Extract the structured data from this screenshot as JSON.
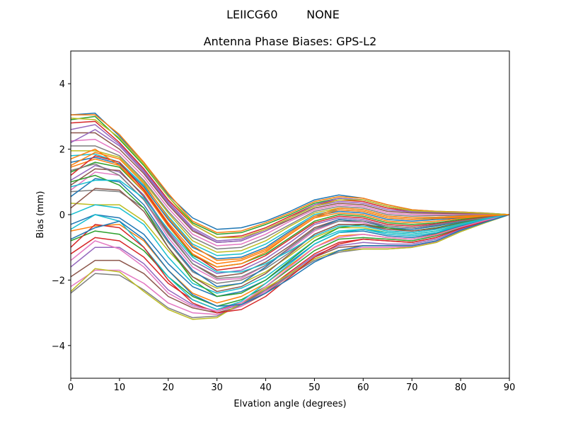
{
  "figure": {
    "suptitle": "LEIICG60        NONE"
  },
  "chart_data": {
    "type": "line",
    "title": "Antenna Phase Biases: GPS-L2",
    "xlabel": "Elvation angle (degrees)",
    "ylabel": "Bias (mm)",
    "xlim": [
      0,
      90
    ],
    "ylim": [
      -5,
      5
    ],
    "xticks": [
      0,
      10,
      20,
      30,
      40,
      50,
      60,
      70,
      80,
      90
    ],
    "xtick_labels": [
      "0",
      "10",
      "20",
      "30",
      "40",
      "50",
      "60",
      "70",
      "80",
      "90"
    ],
    "yticks": [
      -4,
      -2,
      0,
      2,
      4
    ],
    "ytick_labels": [
      "−4",
      "−2",
      "0",
      "2",
      "4"
    ],
    "grid": false,
    "legend": "none",
    "x": [
      0,
      5,
      10,
      15,
      20,
      25,
      30,
      35,
      40,
      45,
      50,
      55,
      60,
      65,
      70,
      75,
      80,
      85,
      90
    ],
    "colors": [
      "#1f77b4",
      "#ff7f0e",
      "#2ca02c",
      "#d62728",
      "#9467bd",
      "#8c564b",
      "#e377c2",
      "#7f7f7f",
      "#bcbd22",
      "#17becf"
    ],
    "series": [
      {
        "values": [
          3.05,
          3.1,
          2.4,
          1.6,
          0.6,
          -0.1,
          -0.45,
          -0.4,
          -0.2,
          0.1,
          0.45,
          0.6,
          0.5,
          0.3,
          0.15,
          0.1,
          0.08,
          0.05,
          0.0
        ]
      },
      {
        "values": [
          3.05,
          3.05,
          2.45,
          1.6,
          0.65,
          -0.2,
          -0.55,
          -0.5,
          -0.25,
          0.05,
          0.4,
          0.55,
          0.5,
          0.3,
          0.15,
          0.1,
          0.08,
          0.05,
          0.0
        ]
      },
      {
        "values": [
          2.9,
          3.0,
          2.3,
          1.5,
          0.55,
          -0.25,
          -0.6,
          -0.55,
          -0.3,
          0.0,
          0.35,
          0.5,
          0.45,
          0.25,
          0.12,
          0.08,
          0.06,
          0.04,
          0.0
        ]
      },
      {
        "values": [
          2.8,
          2.85,
          2.2,
          1.4,
          0.45,
          -0.3,
          -0.7,
          -0.65,
          -0.4,
          -0.05,
          0.3,
          0.45,
          0.4,
          0.2,
          0.1,
          0.07,
          0.05,
          0.03,
          0.0
        ]
      },
      {
        "values": [
          2.6,
          2.75,
          2.15,
          1.35,
          0.4,
          -0.4,
          -0.8,
          -0.75,
          -0.45,
          -0.1,
          0.25,
          0.4,
          0.35,
          0.15,
          0.08,
          0.06,
          0.05,
          0.03,
          0.0
        ]
      },
      {
        "values": [
          2.5,
          2.5,
          2.0,
          1.25,
          0.3,
          -0.5,
          -0.85,
          -0.8,
          -0.5,
          -0.15,
          0.2,
          0.35,
          0.3,
          0.1,
          0.05,
          0.04,
          0.03,
          0.02,
          0.0
        ]
      },
      {
        "values": [
          2.25,
          2.3,
          1.9,
          1.15,
          0.2,
          -0.6,
          -0.95,
          -0.9,
          -0.6,
          -0.2,
          0.15,
          0.3,
          0.25,
          0.05,
          0.0,
          0.0,
          0.0,
          0.0,
          0.0
        ]
      },
      {
        "values": [
          2.1,
          2.1,
          1.8,
          1.05,
          0.1,
          -0.7,
          -1.05,
          -1.0,
          -0.7,
          -0.3,
          0.1,
          0.25,
          0.2,
          0.0,
          -0.05,
          -0.03,
          -0.02,
          -0.01,
          0.0
        ]
      },
      {
        "values": [
          1.95,
          1.95,
          1.75,
          1.0,
          0.05,
          -0.8,
          -1.15,
          -1.1,
          -0.8,
          -0.35,
          0.05,
          0.2,
          0.15,
          -0.05,
          -0.1,
          -0.08,
          -0.05,
          -0.02,
          0.0
        ]
      },
      {
        "values": [
          1.8,
          1.85,
          1.6,
          0.9,
          -0.05,
          -0.9,
          -1.25,
          -1.2,
          -0.9,
          -0.45,
          0.0,
          0.15,
          0.1,
          -0.1,
          -0.15,
          -0.1,
          -0.07,
          -0.03,
          0.0
        ]
      },
      {
        "values": [
          1.6,
          1.75,
          1.55,
          0.85,
          -0.15,
          -1.0,
          -1.35,
          -1.3,
          -1.0,
          -0.5,
          -0.05,
          0.1,
          0.05,
          -0.15,
          -0.2,
          -0.15,
          -0.1,
          -0.05,
          0.0
        ]
      },
      {
        "values": [
          1.45,
          1.7,
          1.5,
          0.8,
          -0.25,
          -1.1,
          -1.5,
          -1.4,
          -1.1,
          -0.6,
          -0.1,
          0.05,
          0.0,
          -0.2,
          -0.25,
          -0.2,
          -0.12,
          -0.06,
          0.0
        ]
      },
      {
        "values": [
          1.3,
          1.6,
          1.45,
          0.7,
          -0.35,
          -1.25,
          -1.6,
          -1.5,
          -1.2,
          -0.7,
          -0.2,
          0.0,
          -0.05,
          -0.25,
          -0.3,
          -0.25,
          -0.15,
          -0.07,
          0.0
        ]
      },
      {
        "values": [
          1.2,
          1.8,
          1.6,
          0.75,
          -0.3,
          -1.2,
          -1.7,
          -1.6,
          -1.25,
          -0.75,
          -0.25,
          -0.05,
          -0.1,
          -0.3,
          -0.35,
          -0.28,
          -0.18,
          -0.08,
          0.0
        ]
      },
      {
        "values": [
          1.05,
          1.5,
          1.3,
          0.6,
          -0.5,
          -1.4,
          -1.8,
          -1.7,
          -1.35,
          -0.85,
          -0.3,
          -0.1,
          -0.15,
          -0.35,
          -0.4,
          -0.3,
          -0.2,
          -0.1,
          0.0
        ]
      },
      {
        "values": [
          0.9,
          1.4,
          1.35,
          0.55,
          -0.55,
          -1.5,
          -1.9,
          -1.8,
          -1.45,
          -0.95,
          -0.4,
          -0.15,
          -0.2,
          -0.4,
          -0.45,
          -0.35,
          -0.22,
          -0.1,
          0.0
        ]
      },
      {
        "values": [
          0.75,
          1.3,
          1.2,
          0.45,
          -0.7,
          -1.6,
          -2.0,
          -1.95,
          -1.55,
          -1.05,
          -0.5,
          -0.2,
          -0.25,
          -0.45,
          -0.5,
          -0.4,
          -0.25,
          -0.12,
          0.0
        ]
      },
      {
        "values": [
          0.7,
          0.75,
          0.7,
          0.2,
          -0.85,
          -1.75,
          -2.1,
          -2.0,
          -1.65,
          -1.15,
          -0.6,
          -0.3,
          -0.3,
          -0.5,
          -0.55,
          -0.45,
          -0.28,
          -0.13,
          0.0
        ]
      },
      {
        "values": [
          0.35,
          0.3,
          0.3,
          -0.2,
          -1.1,
          -1.9,
          -2.25,
          -2.1,
          -1.75,
          -1.25,
          -0.7,
          -0.4,
          -0.4,
          -0.55,
          -0.6,
          -0.5,
          -0.3,
          -0.15,
          0.0
        ]
      },
      {
        "values": [
          0.0,
          0.3,
          0.2,
          -0.3,
          -1.3,
          -2.1,
          -2.4,
          -2.25,
          -1.9,
          -1.35,
          -0.8,
          -0.5,
          -0.45,
          -0.6,
          -0.65,
          -0.55,
          -0.32,
          -0.15,
          0.0
        ]
      },
      {
        "values": [
          -0.3,
          0.0,
          -0.1,
          -0.6,
          -1.5,
          -2.2,
          -2.5,
          -2.35,
          -2.0,
          -1.45,
          -0.9,
          -0.55,
          -0.5,
          -0.65,
          -0.7,
          -0.58,
          -0.35,
          -0.17,
          0.0
        ]
      },
      {
        "values": [
          -0.5,
          -0.35,
          -0.3,
          -0.8,
          -1.7,
          -2.4,
          -2.7,
          -2.5,
          -2.1,
          -1.55,
          -1.0,
          -0.65,
          -0.6,
          -0.7,
          -0.75,
          -0.6,
          -0.38,
          -0.18,
          0.0
        ]
      },
      {
        "values": [
          -0.8,
          -0.5,
          -0.6,
          -1.1,
          -1.9,
          -2.5,
          -2.8,
          -2.6,
          -2.2,
          -1.65,
          -1.1,
          -0.75,
          -0.7,
          -0.75,
          -0.8,
          -0.65,
          -0.4,
          -0.2,
          0.0
        ]
      },
      {
        "values": [
          -1.2,
          -0.7,
          -0.8,
          -1.3,
          -2.1,
          -2.6,
          -2.9,
          -2.7,
          -2.3,
          -1.75,
          -1.2,
          -0.85,
          -0.75,
          -0.8,
          -0.85,
          -0.7,
          -0.42,
          -0.2,
          0.0
        ]
      },
      {
        "values": [
          -1.6,
          -1.0,
          -1.0,
          -1.5,
          -2.3,
          -2.75,
          -2.95,
          -2.75,
          -2.35,
          -1.8,
          -1.25,
          -0.95,
          -0.85,
          -0.9,
          -0.9,
          -0.75,
          -0.45,
          -0.22,
          0.0
        ]
      },
      {
        "values": [
          -1.9,
          -1.4,
          -1.4,
          -1.8,
          -2.5,
          -2.85,
          -3.0,
          -2.8,
          -2.4,
          -1.85,
          -1.3,
          -1.0,
          -0.95,
          -0.95,
          -0.95,
          -0.8,
          -0.48,
          -0.23,
          0.0
        ]
      },
      {
        "values": [
          -2.2,
          -1.7,
          -1.7,
          -2.1,
          -2.7,
          -3.0,
          -3.05,
          -2.8,
          -2.35,
          -1.85,
          -1.35,
          -1.1,
          -1.0,
          -1.0,
          -0.98,
          -0.82,
          -0.5,
          -0.24,
          0.0
        ]
      },
      {
        "values": [
          -2.4,
          -1.8,
          -1.85,
          -2.3,
          -2.85,
          -3.15,
          -3.1,
          -2.75,
          -2.3,
          -1.85,
          -1.4,
          -1.15,
          -1.05,
          -1.05,
          -1.0,
          -0.85,
          -0.52,
          -0.25,
          0.0
        ]
      },
      {
        "values": [
          -2.35,
          -1.65,
          -1.75,
          -2.35,
          -2.9,
          -3.2,
          -3.15,
          -2.7,
          -2.25,
          -1.8,
          -1.35,
          -1.1,
          -1.05,
          -1.05,
          -1.0,
          -0.85,
          -0.52,
          -0.25,
          0.0
        ]
      },
      {
        "values": [
          -0.45,
          0.0,
          -0.2,
          -1.0,
          -1.9,
          -2.6,
          -2.9,
          -2.65,
          -2.1,
          -1.5,
          -0.9,
          -0.55,
          -0.45,
          -0.55,
          -0.6,
          -0.5,
          -0.32,
          -0.15,
          0.0
        ]
      },
      {
        "values": [
          0.55,
          1.1,
          1.0,
          0.3,
          -0.8,
          -1.7,
          -2.2,
          -2.1,
          -1.6,
          -1.0,
          -0.45,
          -0.15,
          -0.2,
          -0.4,
          -0.45,
          -0.35,
          -0.22,
          -0.1,
          0.0
        ]
      },
      {
        "values": [
          1.5,
          1.9,
          1.7,
          0.95,
          -0.1,
          -0.95,
          -1.4,
          -1.35,
          -1.05,
          -0.55,
          -0.05,
          0.2,
          0.15,
          -0.05,
          -0.1,
          -0.08,
          -0.05,
          -0.02,
          0.0
        ]
      },
      {
        "values": [
          1.0,
          1.2,
          0.9,
          0.2,
          -1.0,
          -2.0,
          -2.5,
          -2.4,
          -2.0,
          -1.4,
          -0.8,
          -0.4,
          -0.3,
          -0.4,
          -0.5,
          -0.4,
          -0.25,
          -0.12,
          0.0
        ]
      },
      {
        "values": [
          -1.0,
          -0.3,
          -0.4,
          -1.0,
          -2.0,
          -2.7,
          -3.0,
          -2.9,
          -2.5,
          -1.9,
          -1.3,
          -0.9,
          -0.75,
          -0.8,
          -0.85,
          -0.7,
          -0.42,
          -0.2,
          0.0
        ]
      },
      {
        "values": [
          2.2,
          2.6,
          2.1,
          1.3,
          0.35,
          -0.45,
          -0.85,
          -0.8,
          -0.5,
          -0.1,
          0.3,
          0.5,
          0.45,
          0.25,
          0.1,
          0.08,
          0.06,
          0.04,
          0.0
        ]
      },
      {
        "values": [
          0.2,
          0.8,
          0.75,
          0.1,
          -1.0,
          -1.9,
          -2.35,
          -2.2,
          -1.8,
          -1.2,
          -0.6,
          -0.3,
          -0.3,
          -0.45,
          -0.5,
          -0.42,
          -0.27,
          -0.13,
          0.0
        ]
      },
      {
        "values": [
          -1.4,
          -0.8,
          -1.05,
          -1.6,
          -2.4,
          -2.8,
          -2.95,
          -2.7,
          -2.2,
          -1.6,
          -1.0,
          -0.7,
          -0.6,
          -0.7,
          -0.75,
          -0.62,
          -0.38,
          -0.18,
          0.0
        ]
      },
      {
        "values": [
          1.35,
          1.55,
          1.2,
          0.45,
          -0.6,
          -1.5,
          -1.95,
          -1.9,
          -1.55,
          -1.0,
          -0.45,
          -0.2,
          -0.2,
          -0.35,
          -0.4,
          -0.32,
          -0.2,
          -0.1,
          0.0
        ]
      },
      {
        "values": [
          2.95,
          2.9,
          2.35,
          1.55,
          0.55,
          -0.3,
          -0.7,
          -0.7,
          -0.45,
          -0.1,
          0.25,
          0.45,
          0.45,
          0.25,
          0.12,
          0.09,
          0.07,
          0.04,
          0.0
        ]
      },
      {
        "values": [
          0.85,
          1.05,
          1.05,
          0.5,
          -0.45,
          -1.3,
          -1.75,
          -1.75,
          -1.5,
          -1.1,
          -0.65,
          -0.35,
          -0.35,
          -0.5,
          -0.55,
          -0.45,
          -0.28,
          -0.13,
          0.0
        ]
      },
      {
        "values": [
          -0.75,
          -0.4,
          -0.2,
          -0.75,
          -1.7,
          -2.45,
          -2.8,
          -2.75,
          -2.4,
          -1.95,
          -1.45,
          -1.1,
          -0.95,
          -0.95,
          -0.95,
          -0.8,
          -0.48,
          -0.23,
          0.0
        ]
      },
      {
        "values": [
          1.7,
          2.0,
          1.5,
          0.7,
          -0.35,
          -1.2,
          -1.6,
          -1.5,
          -1.15,
          -0.6,
          -0.1,
          0.15,
          0.1,
          -0.1,
          -0.15,
          -0.12,
          -0.08,
          -0.04,
          0.0
        ]
      }
    ]
  }
}
